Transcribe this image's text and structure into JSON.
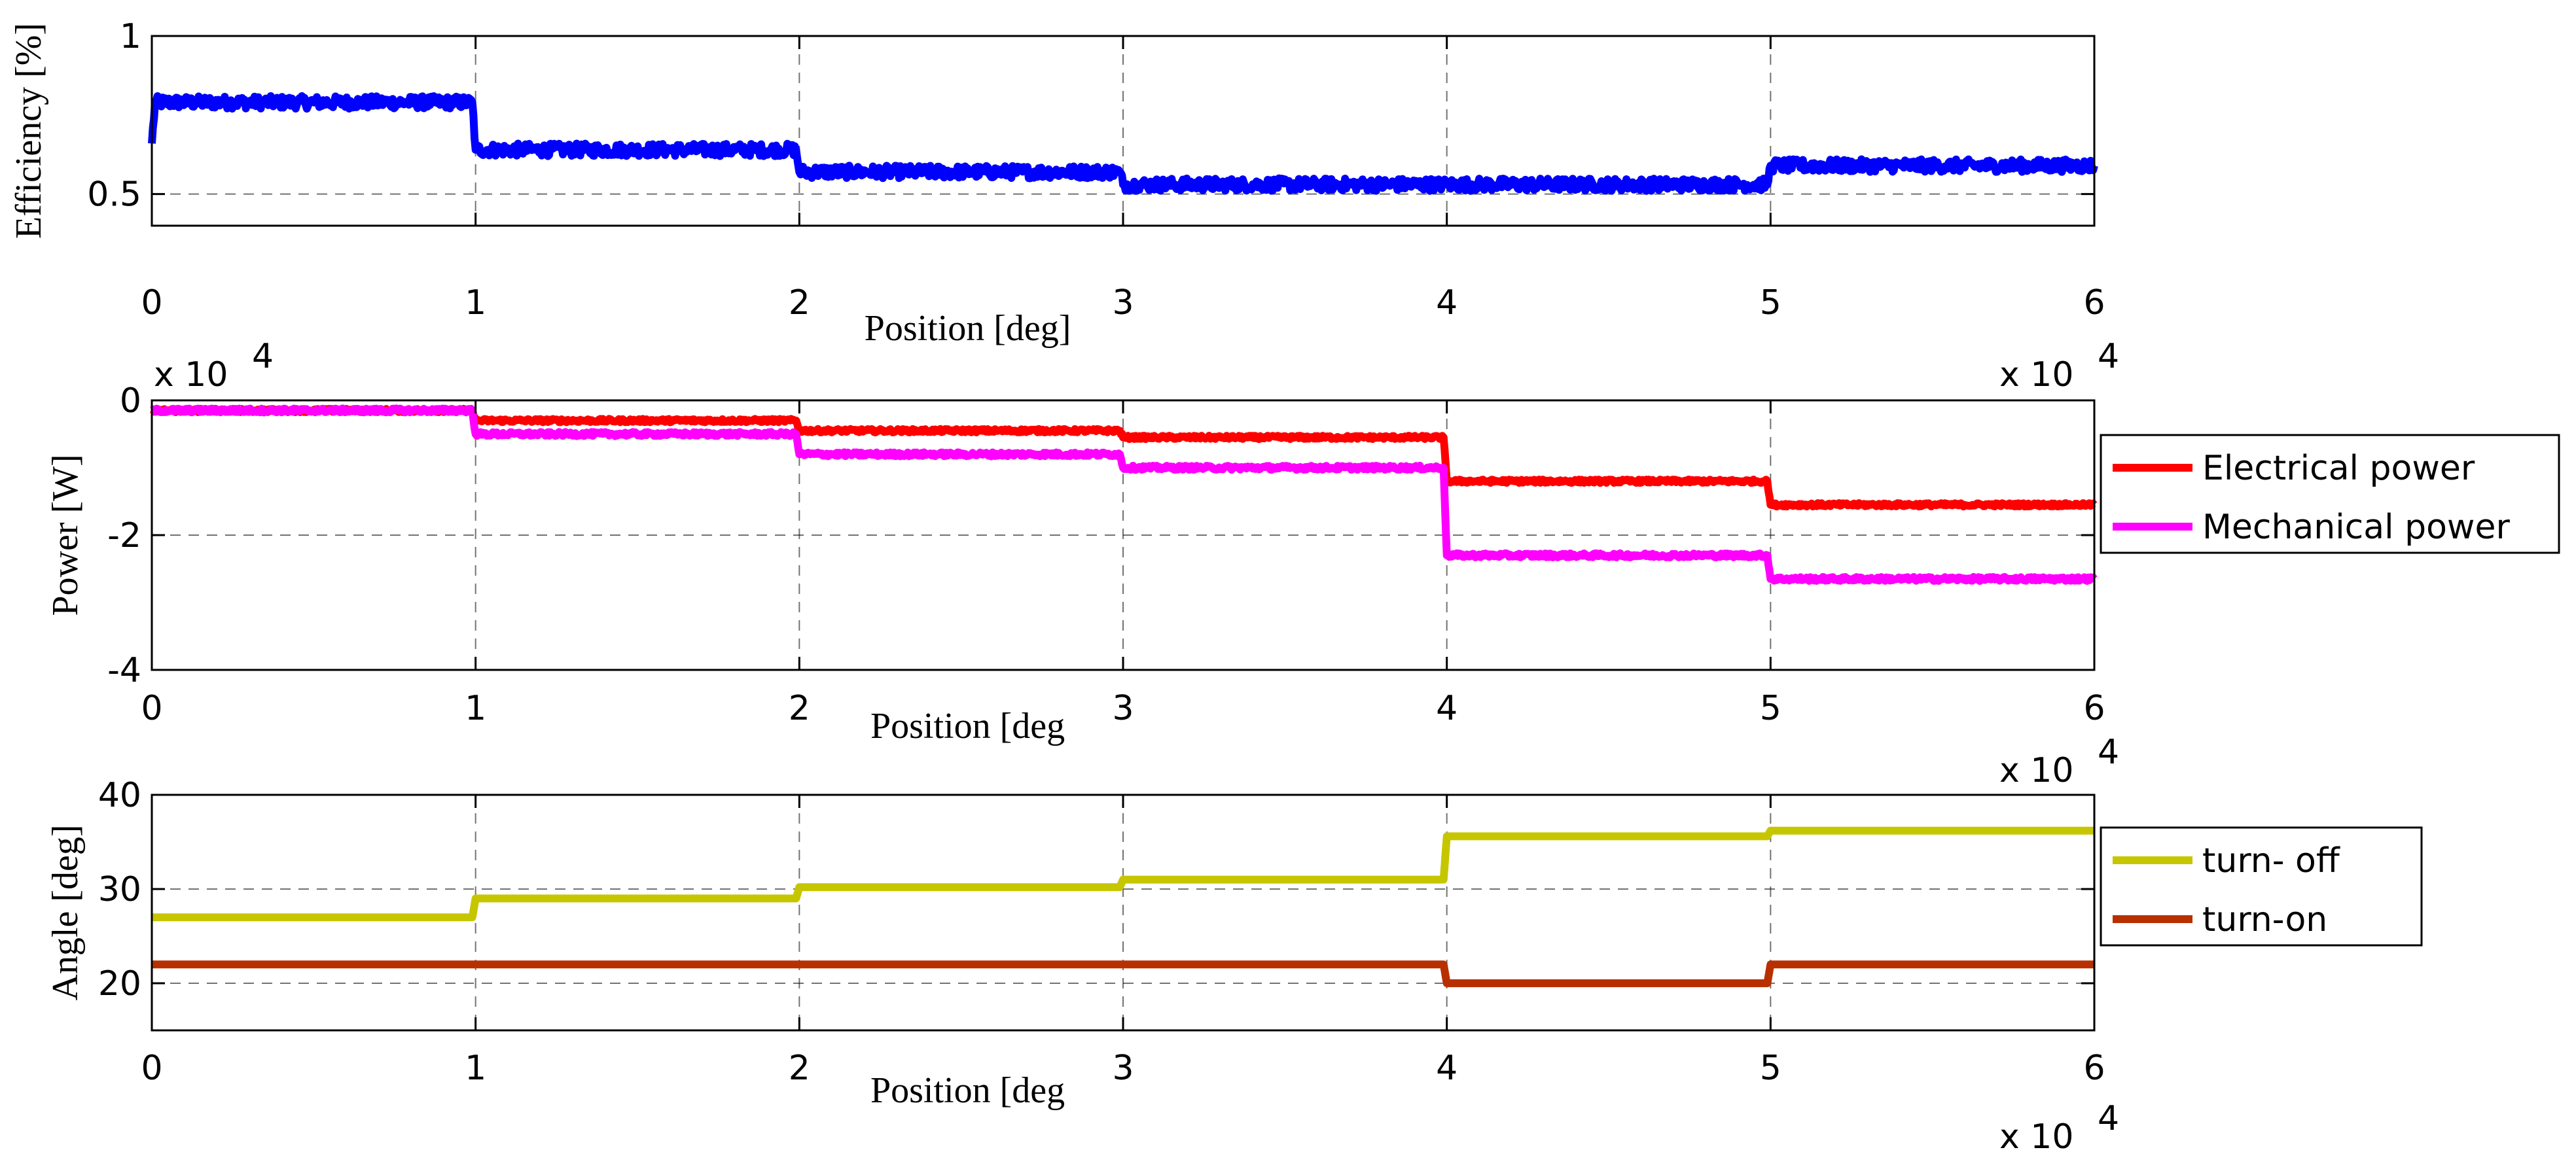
{
  "chart_data": [
    {
      "type": "line",
      "ylabel": "Efficiency [%]",
      "xlabel": "Position [deg]",
      "x_multiplier": "x 10",
      "x_multiplier_exp": "4",
      "xlim": [
        0,
        6
      ],
      "ylim": [
        0.4,
        1
      ],
      "xticks": [
        "0",
        "1",
        "2",
        "3",
        "4",
        "5",
        "6"
      ],
      "yticks": [
        {
          "v": 0.5,
          "label": "0.5"
        },
        {
          "v": 1,
          "label": "1"
        }
      ],
      "grid": true,
      "legend": [],
      "series": [
        {
          "color": "#0000ff",
          "noise": 0.04,
          "points": [
            [
              0,
              0.66
            ],
            [
              0.01,
              0.79
            ],
            [
              0.99,
              0.79
            ],
            [
              1.0,
              0.64
            ],
            [
              1.99,
              0.64
            ],
            [
              2.0,
              0.57
            ],
            [
              2.99,
              0.57
            ],
            [
              3.0,
              0.53
            ],
            [
              3.99,
              0.53
            ],
            [
              4.0,
              0.53
            ],
            [
              4.99,
              0.53
            ],
            [
              5.0,
              0.59
            ],
            [
              6.0,
              0.59
            ]
          ]
        }
      ]
    },
    {
      "type": "line",
      "ylabel": "Power [W]",
      "xlabel": "Position [deg",
      "y_multiplier": "x 10",
      "y_multiplier_exp": "4",
      "x_multiplier": "x 10",
      "x_multiplier_exp": "4",
      "xlim": [
        0,
        6
      ],
      "ylim": [
        -4,
        0
      ],
      "xticks": [
        "0",
        "1",
        "2",
        "3",
        "4",
        "5",
        "6"
      ],
      "yticks": [
        {
          "v": 0,
          "label": "0"
        },
        {
          "v": -2,
          "label": "-2"
        },
        {
          "v": -4,
          "label": "-4"
        }
      ],
      "grid": true,
      "legend": [
        "Electrical power",
        "Mechanical power"
      ],
      "series": [
        {
          "name": "Electrical power",
          "color": "#ff0000",
          "noise": 0.05,
          "points": [
            [
              0,
              -0.15
            ],
            [
              0.99,
              -0.15
            ],
            [
              1.0,
              -0.3
            ],
            [
              1.99,
              -0.3
            ],
            [
              2.0,
              -0.45
            ],
            [
              2.99,
              -0.45
            ],
            [
              3.0,
              -0.55
            ],
            [
              3.99,
              -0.55
            ],
            [
              4.0,
              -1.2
            ],
            [
              4.99,
              -1.2
            ],
            [
              5.0,
              -1.55
            ],
            [
              6.0,
              -1.55
            ]
          ]
        },
        {
          "name": "Mechanical power",
          "color": "#ff00ff",
          "noise": 0.06,
          "points": [
            [
              0,
              -0.15
            ],
            [
              0.99,
              -0.15
            ],
            [
              1.0,
              -0.5
            ],
            [
              1.99,
              -0.5
            ],
            [
              2.0,
              -0.8
            ],
            [
              2.99,
              -0.8
            ],
            [
              3.0,
              -1.0
            ],
            [
              3.99,
              -1.0
            ],
            [
              4.0,
              -2.3
            ],
            [
              4.99,
              -2.3
            ],
            [
              5.0,
              -2.65
            ],
            [
              6.0,
              -2.65
            ]
          ]
        }
      ]
    },
    {
      "type": "line",
      "ylabel": "Angle [deg]",
      "xlabel": "Position [deg",
      "x_multiplier": "x 10",
      "x_multiplier_exp": "4",
      "xlim": [
        0,
        6
      ],
      "ylim": [
        15,
        40
      ],
      "xticks": [
        "0",
        "1",
        "2",
        "3",
        "4",
        "5",
        "6"
      ],
      "yticks": [
        {
          "v": 20,
          "label": "20"
        },
        {
          "v": 30,
          "label": "30"
        },
        {
          "v": 40,
          "label": "40"
        }
      ],
      "grid": true,
      "legend": [
        "turn- off",
        "turn-on"
      ],
      "series": [
        {
          "name": "turn- off",
          "color": "#c6c600",
          "noise": 0,
          "points": [
            [
              0,
              27
            ],
            [
              0.99,
              27
            ],
            [
              1.0,
              29
            ],
            [
              1.99,
              29
            ],
            [
              2.0,
              30.2
            ],
            [
              2.99,
              30.2
            ],
            [
              3.0,
              31
            ],
            [
              3.99,
              31
            ],
            [
              4.0,
              35.6
            ],
            [
              4.99,
              35.6
            ],
            [
              5.0,
              36.2
            ],
            [
              6.0,
              36.2
            ]
          ]
        },
        {
          "name": "turn-on",
          "color": "#b83000",
          "noise": 0,
          "points": [
            [
              0,
              22
            ],
            [
              3.99,
              22
            ],
            [
              4.0,
              20
            ],
            [
              4.99,
              20
            ],
            [
              5.0,
              22
            ],
            [
              6.0,
              22
            ]
          ]
        }
      ]
    }
  ]
}
